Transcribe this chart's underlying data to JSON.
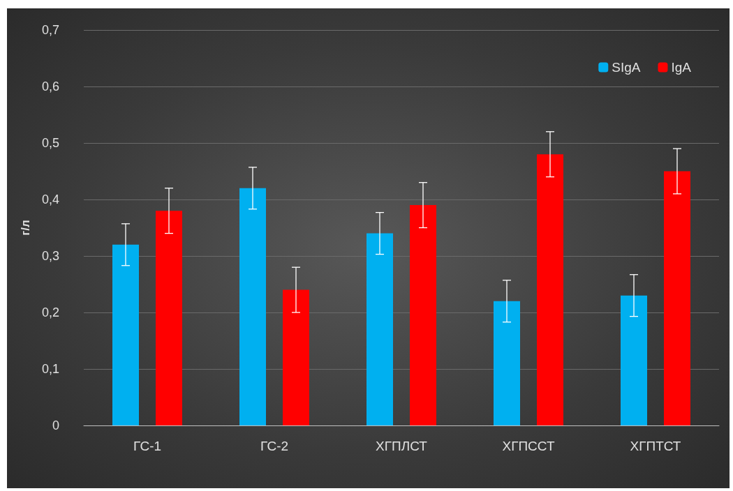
{
  "chart_data": {
    "type": "bar",
    "ylabel": "г/л",
    "categories": [
      "ГС-1",
      "ГС-2",
      "ХГПЛСТ",
      "ХГПССТ",
      "ХГПТСТ"
    ],
    "series": [
      {
        "name": "SIgA",
        "color": "#00b0f0",
        "values": [
          0.32,
          0.42,
          0.34,
          0.22,
          0.23
        ],
        "errors": [
          0.037,
          0.037,
          0.037,
          0.037,
          0.037
        ]
      },
      {
        "name": "IgA",
        "color": "#ff0000",
        "values": [
          0.38,
          0.24,
          0.39,
          0.48,
          0.45
        ],
        "errors": [
          0.04,
          0.04,
          0.04,
          0.04,
          0.04
        ]
      }
    ],
    "ylim": [
      0,
      0.7
    ],
    "yticks": [
      {
        "value": 0,
        "label": "0"
      },
      {
        "value": 0.1,
        "label": "0,1"
      },
      {
        "value": 0.2,
        "label": "0,2"
      },
      {
        "value": 0.3,
        "label": "0,3"
      },
      {
        "value": 0.4,
        "label": "0,4"
      },
      {
        "value": 0.5,
        "label": "0,5"
      },
      {
        "value": 0.6,
        "label": "0,6"
      },
      {
        "value": 0.7,
        "label": "0,7"
      }
    ],
    "grid": "y",
    "legend": "top right"
  }
}
